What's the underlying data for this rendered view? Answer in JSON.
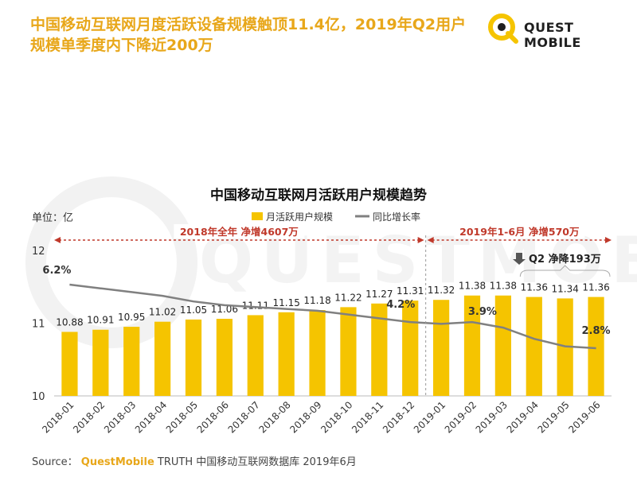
{
  "headline": "中国移动互联网月度活跃设备规模触顶11.4亿，2019年Q2用户规模单季度内下降近200万",
  "logo": {
    "text": "QUEST MOBILE"
  },
  "watermark": "QUESTMOBILE",
  "source": {
    "prefix": "Source：",
    "brand": "QuestMobile",
    "rest": " TRUTH 中国移动互联网数据库 2019年6月"
  },
  "chart_data": {
    "type": "bar",
    "title": "中国移动互联网月活跃用户规模趋势",
    "unit_label": "单位：亿",
    "categories": [
      "2018-01",
      "2018-02",
      "2018-03",
      "2018-04",
      "2018-05",
      "2018-06",
      "2018-07",
      "2018-08",
      "2018-09",
      "2018-10",
      "2018-11",
      "2018-12",
      "2019-01",
      "2019-02",
      "2019-03",
      "2019-04",
      "2019-05",
      "2019-06"
    ],
    "ylim": [
      10,
      12
    ],
    "yticks": [
      "12",
      "11",
      "10"
    ],
    "series": [
      {
        "name": "月活跃用户规模",
        "type": "bar",
        "color": "#f5c400",
        "values": [
          10.88,
          10.91,
          10.95,
          11.02,
          11.05,
          11.06,
          11.11,
          11.15,
          11.18,
          11.22,
          11.27,
          11.31,
          11.32,
          11.38,
          11.38,
          11.36,
          11.34,
          11.36
        ],
        "labels": [
          "10.88",
          "10.91",
          "10.95",
          "11.02",
          "11.05",
          "11.06",
          "11.11",
          "11.15",
          "11.18",
          "11.22",
          "11.27",
          "11.31",
          "11.32",
          "11.38",
          "11.38",
          "11.36",
          "11.34",
          "11.36"
        ]
      },
      {
        "name": "同比增长率",
        "type": "line",
        "color": "#808080",
        "values_pct": [
          6.2,
          6.0,
          5.8,
          5.6,
          5.3,
          5.1,
          5.0,
          4.9,
          4.8,
          4.6,
          4.4,
          4.2,
          4.1,
          4.2,
          3.9,
          3.3,
          2.9,
          2.8
        ]
      }
    ],
    "rate_annotations": [
      {
        "index": 0,
        "label": "6.2%"
      },
      {
        "index": 11,
        "label": "4.2%"
      },
      {
        "index": 14,
        "label": "3.9%"
      },
      {
        "index": 17,
        "label": "2.8%"
      }
    ],
    "period_annotations": [
      {
        "label": "2018年全年  净增4607万",
        "from_index": 0,
        "to_index": 11
      },
      {
        "label": "2019年1-6月  净增570万",
        "from_index": 12,
        "to_index": 17
      }
    ],
    "q2_annotation": {
      "label": "Q2 净降193万",
      "from_index": 15,
      "to_index": 17
    },
    "colors": {
      "bar": "#f5c400",
      "line": "#808080",
      "annotation": "#c0392b"
    }
  }
}
